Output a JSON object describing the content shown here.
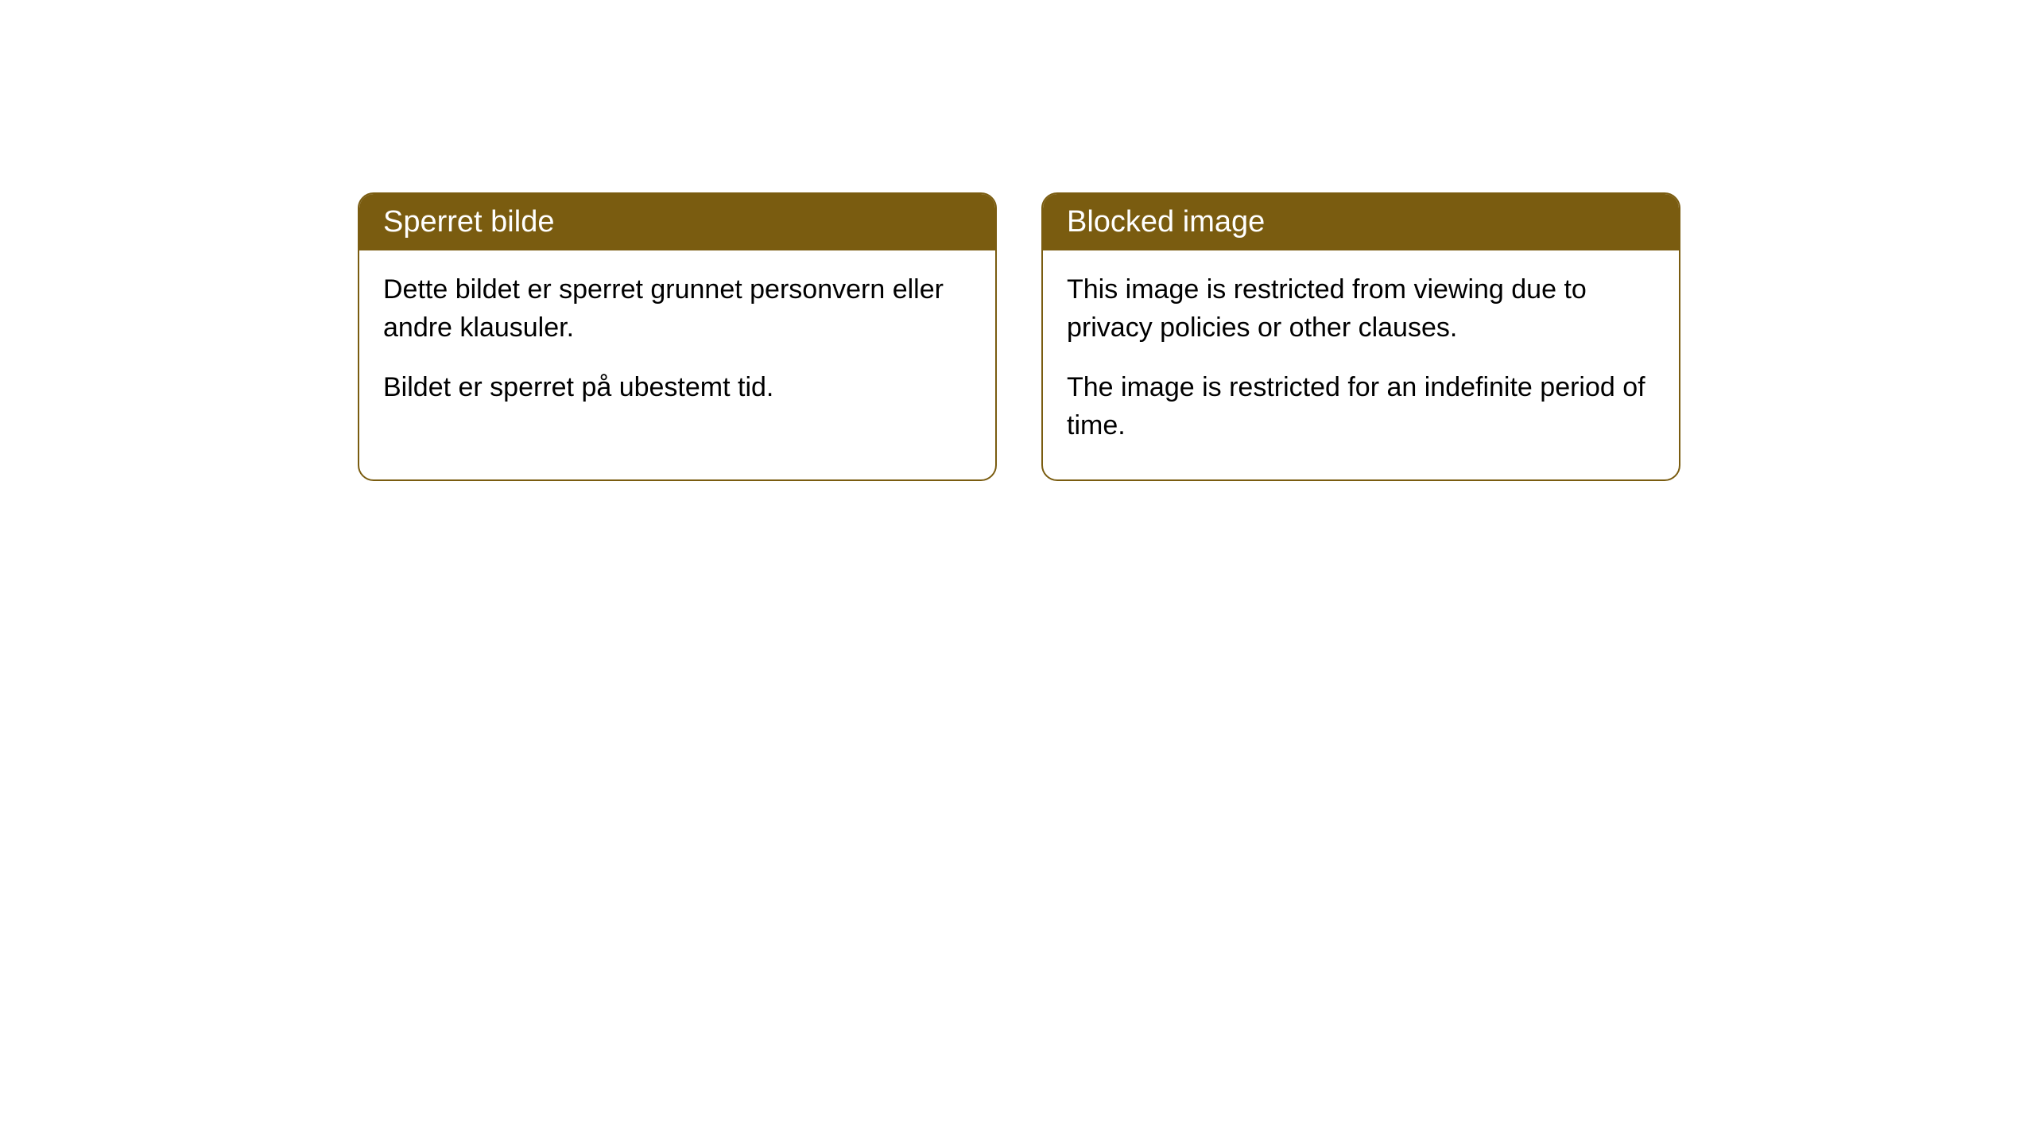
{
  "cards": [
    {
      "title": "Sperret bilde",
      "paragraphs": [
        "Dette bildet er sperret grunnet personvern eller andre klausuler.",
        "Bildet er sperret på ubestemt tid."
      ]
    },
    {
      "title": "Blocked image",
      "paragraphs": [
        "This image is restricted from viewing due to privacy policies or other clauses.",
        "The image is restricted for an indefinite period of time."
      ]
    }
  ],
  "colors": {
    "header_bg": "#7a5c10",
    "header_text": "#ffffff",
    "body_bg": "#ffffff",
    "body_text": "#000000",
    "border": "#7a5c10"
  }
}
